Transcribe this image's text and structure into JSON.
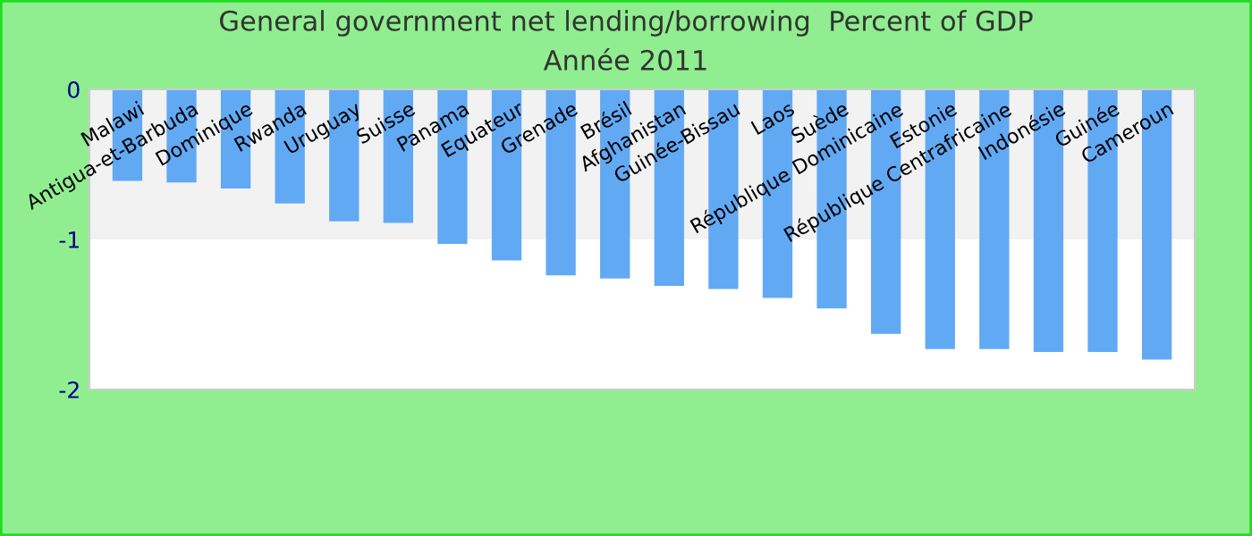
{
  "chart_data": {
    "type": "bar",
    "title": "General government net lending/borrowing  Percent of GDP",
    "subtitle": "Année 2011",
    "categories": [
      "Malawi",
      "Antigua-et-Barbuda",
      "Dominique",
      "Rwanda",
      "Uruguay",
      "Suisse",
      "Panama",
      "Equateur",
      "Grenade",
      "Brésil",
      "Afghanistan",
      "Guinée-Bissau",
      "Laos",
      "Suède",
      "République Dominicaine",
      "Estonie",
      "République Centrafricaine",
      "Indonésie",
      "Guinée",
      "Cameroun"
    ],
    "series": [
      {
        "color": "#62a9f4",
        "values": [
          -0.61,
          -0.62,
          -0.66,
          -0.76,
          -0.88,
          -0.89,
          -1.03,
          -1.14,
          -1.24,
          -1.26,
          -1.31,
          -1.33,
          -1.39,
          -1.46,
          -1.63,
          -1.73,
          -1.73,
          -1.75,
          -1.75,
          -1.8
        ]
      }
    ],
    "ylim": [
      -2,
      0
    ],
    "yticks": [
      -2,
      -1,
      0
    ],
    "grid": false,
    "bands": [
      {
        "axis": "y",
        "from": -1,
        "to": 0,
        "color": "#f2f2f2"
      }
    ]
  }
}
